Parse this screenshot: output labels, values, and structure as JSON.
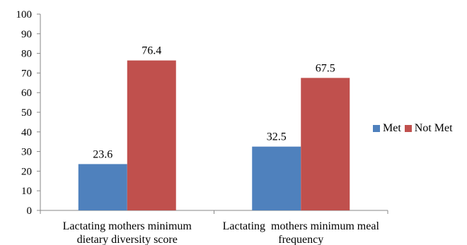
{
  "chart_data": {
    "type": "bar",
    "categories": [
      [
        "Lactating mothers minimum",
        "dietary diversity score"
      ],
      [
        "Lactating  mothers minimum meal",
        "frequency"
      ]
    ],
    "series": [
      {
        "name": "Met",
        "values": [
          23.6,
          32.5
        ],
        "color": "#4F81BD"
      },
      {
        "name": "Not Met",
        "values": [
          76.4,
          67.5
        ],
        "color": "#C0504D"
      }
    ],
    "data_labels": [
      [
        "23.6",
        "32.5"
      ],
      [
        "76.4",
        "67.5"
      ]
    ],
    "yticks": [
      "0",
      "10",
      "20",
      "30",
      "40",
      "50",
      "60",
      "70",
      "80",
      "90",
      "100"
    ],
    "ylim": [
      0,
      100
    ],
    "title": "",
    "xlabel": "",
    "ylabel": "",
    "grid": false,
    "legend_position": "right"
  }
}
